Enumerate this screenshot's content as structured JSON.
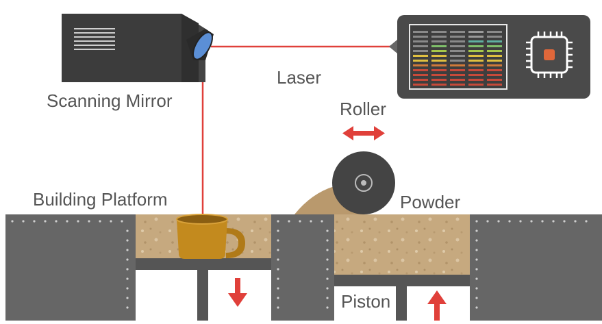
{
  "labels": {
    "scanning_mirror": "Scanning Mirror",
    "laser": "Laser",
    "roller": "Roller",
    "building_platform": "Building Platform",
    "powder": "Powder",
    "piston": "Piston"
  },
  "colors": {
    "laser": "#e0403a",
    "arrow": "#e0403a",
    "panel": "#555555",
    "dark_panel": "#4a4a4a",
    "powder": "#bfa07a",
    "mug": "#c38a1e",
    "mirror_lens": "#5b8fd6"
  },
  "icons": {
    "mirror": "scanning-mirror-icon",
    "controller": "chip-icon",
    "monitor": "equalizer-screen-icon",
    "mug": "mug-icon"
  }
}
